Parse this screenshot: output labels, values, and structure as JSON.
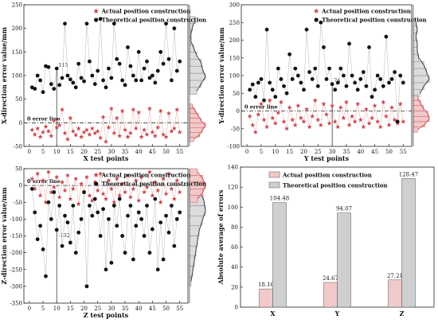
{
  "colors": {
    "actual": "#c8474d",
    "theoretical": "#111111",
    "actual_hist": "#f2c8c8",
    "theo_hist": "#dcdcdc",
    "bar_actual": "#f1c9c9",
    "bar_theoretical": "#cfcfcf"
  },
  "chart_data": [
    {
      "id": "x",
      "type": "scatter",
      "xlabel": "X test points",
      "ylabel": "X-direction error value/mm",
      "xlim": [
        -2,
        58
      ],
      "ylim": [
        -50,
        250
      ],
      "xticks": [
        0,
        5,
        10,
        15,
        20,
        25,
        30,
        35,
        40,
        45,
        50,
        55
      ],
      "yticks": [
        -50,
        0,
        50,
        100,
        150,
        200,
        250
      ],
      "zero_label": "0 error line",
      "marker_label": "115",
      "marker_x": 10,
      "marker_y": 115,
      "legend": {
        "actual": "Actual position construction",
        "theoretical": "Theoretical position construction"
      },
      "series": [
        {
          "name": "Actual position construction",
          "marker": "star",
          "x": [
            1,
            2,
            3,
            4,
            5,
            6,
            7,
            8,
            9,
            10,
            11,
            12,
            13,
            14,
            15,
            16,
            17,
            18,
            19,
            20,
            21,
            22,
            23,
            24,
            25,
            26,
            27,
            28,
            29,
            30,
            31,
            32,
            33,
            34,
            35,
            36,
            37,
            38,
            39,
            40,
            41,
            42,
            43,
            44,
            45,
            46,
            47,
            48,
            49,
            50,
            51,
            52,
            53,
            54,
            55
          ],
          "y": [
            -15,
            -25,
            -12,
            -30,
            -20,
            -8,
            -18,
            -28,
            5,
            -10,
            -5,
            28,
            -22,
            -35,
            10,
            -18,
            -26,
            -12,
            -30,
            -20,
            -15,
            -25,
            -12,
            -22,
            -18,
            -32,
            12,
            -40,
            -10,
            30,
            -22,
            10,
            -28,
            25,
            -15,
            -30,
            -22,
            28,
            -12,
            22,
            -30,
            -15,
            -25,
            30,
            -20,
            -28,
            -10,
            25,
            -25,
            -30,
            20,
            -18,
            -12,
            28,
            -20
          ]
        },
        {
          "name": "Theoretical position construction",
          "marker": "circle",
          "x": [
            1,
            2,
            3,
            4,
            5,
            6,
            7,
            8,
            9,
            10,
            11,
            12,
            13,
            14,
            15,
            16,
            17,
            18,
            19,
            20,
            21,
            22,
            23,
            24,
            25,
            26,
            27,
            28,
            29,
            30,
            31,
            32,
            33,
            34,
            35,
            36,
            37,
            38,
            39,
            40,
            41,
            42,
            43,
            44,
            45,
            46,
            47,
            48,
            49,
            50,
            51,
            52,
            53,
            54,
            55
          ],
          "y": [
            75,
            72,
            100,
            90,
            65,
            120,
            118,
            82,
            72,
            115,
            80,
            95,
            210,
            100,
            92,
            85,
            75,
            125,
            95,
            88,
            210,
            130,
            100,
            82,
            110,
            220,
            90,
            75,
            115,
            95,
            210,
            135,
            125,
            90,
            80,
            160,
            120,
            100,
            90,
            150,
            90,
            115,
            130,
            95,
            100,
            85,
            110,
            150,
            125,
            210,
            135,
            90,
            200,
            110,
            130
          ]
        }
      ],
      "hist": {
        "actual": {
          "bins": [
            -40,
            -30,
            -20,
            -10,
            0,
            10,
            20,
            30
          ],
          "counts": [
            3,
            7,
            9,
            11,
            8,
            6,
            4,
            2
          ]
        },
        "theoretical": {
          "bins": [
            60,
            75,
            90,
            105,
            120,
            135,
            150,
            165,
            180,
            195,
            210
          ],
          "counts": [
            5,
            8,
            11,
            9,
            8,
            5,
            3,
            1,
            1,
            2,
            4
          ]
        }
      }
    },
    {
      "id": "y",
      "type": "scatter",
      "xlabel": "Y test points",
      "ylabel": "Y-direction error value/mm",
      "xlim": [
        -2,
        58
      ],
      "ylim": [
        -100,
        300
      ],
      "xticks": [
        0,
        5,
        10,
        15,
        20,
        25,
        30,
        35,
        40,
        45,
        50,
        55
      ],
      "yticks": [
        -100,
        -50,
        0,
        50,
        100,
        150,
        200,
        250,
        300
      ],
      "zero_label": "0 error line",
      "marker_label": "76",
      "marker_x": 30,
      "marker_y": 76,
      "legend": {
        "actual": "Actual position construction",
        "theoretical": "Theoretical position construction"
      },
      "series": [
        {
          "name": "Actual position construction",
          "marker": "star",
          "x": [
            1,
            2,
            3,
            4,
            5,
            6,
            7,
            8,
            9,
            10,
            11,
            12,
            13,
            14,
            15,
            16,
            17,
            18,
            19,
            20,
            21,
            22,
            23,
            24,
            25,
            26,
            27,
            28,
            29,
            30,
            31,
            32,
            33,
            34,
            35,
            36,
            37,
            38,
            39,
            40,
            41,
            42,
            43,
            44,
            45,
            46,
            47,
            48,
            49,
            50,
            51,
            52,
            53,
            54,
            55
          ],
          "y": [
            -15,
            -40,
            -60,
            -10,
            20,
            -25,
            -45,
            30,
            -20,
            -35,
            -5,
            25,
            -30,
            -50,
            10,
            -25,
            -40,
            15,
            -20,
            -30,
            5,
            -45,
            -15,
            30,
            -25,
            -40,
            20,
            -10,
            -35,
            15,
            -30,
            -45,
            10,
            -20,
            25,
            -40,
            -15,
            -30,
            20,
            -25,
            -45,
            5,
            -35,
            -20,
            15,
            -30,
            -45,
            25,
            -15,
            -40,
            10,
            -25,
            -35,
            20,
            -30
          ]
        },
        {
          "name": "Theoretical position construction",
          "marker": "circle",
          "x": [
            1,
            2,
            3,
            4,
            5,
            6,
            7,
            8,
            9,
            10,
            11,
            12,
            13,
            14,
            15,
            16,
            17,
            18,
            19,
            20,
            21,
            22,
            23,
            24,
            25,
            26,
            27,
            28,
            29,
            30,
            31,
            32,
            33,
            34,
            35,
            36,
            37,
            38,
            39,
            40,
            41,
            42,
            43,
            44,
            45,
            46,
            47,
            48,
            49,
            50,
            51,
            52,
            53,
            54,
            55
          ],
          "y": [
            60,
            75,
            40,
            80,
            90,
            30,
            230,
            80,
            60,
            40,
            120,
            90,
            70,
            50,
            160,
            90,
            120,
            100,
            80,
            60,
            230,
            110,
            90,
            120,
            70,
            250,
            180,
            90,
            120,
            76,
            60,
            80,
            120,
            100,
            70,
            190,
            100,
            80,
            60,
            90,
            110,
            70,
            180,
            40,
            60,
            100,
            90,
            70,
            210,
            80,
            90,
            110,
            -30,
            100,
            80
          ]
        }
      ],
      "hist": {
        "actual": {
          "bins": [
            -60,
            -45,
            -30,
            -15,
            0,
            15,
            30
          ],
          "counts": [
            3,
            8,
            11,
            10,
            7,
            5,
            3
          ]
        },
        "theoretical": {
          "bins": [
            40,
            60,
            80,
            100,
            120,
            140,
            160,
            180,
            200,
            220,
            240
          ],
          "counts": [
            5,
            8,
            12,
            10,
            8,
            4,
            3,
            3,
            2,
            3,
            2
          ]
        }
      }
    },
    {
      "id": "z",
      "type": "scatter",
      "xlabel": "Z test points",
      "ylabel": "Z-direction error value/mm",
      "xlim": [
        -2,
        58
      ],
      "ylim": [
        -350,
        50
      ],
      "xticks": [
        0,
        5,
        10,
        15,
        20,
        25,
        30,
        35,
        40,
        45,
        50,
        55
      ],
      "yticks": [
        -350,
        -300,
        -250,
        -200,
        -150,
        -100,
        -50,
        0,
        50
      ],
      "zero_label": "0 error line",
      "marker_label": "-132",
      "marker_x": 10,
      "marker_y": -132,
      "legend": {
        "actual": "Actual position construction",
        "theoretical": "Theoretical position construction"
      },
      "series": [
        {
          "name": "Actual position construction",
          "marker": "star",
          "x": [
            1,
            2,
            3,
            4,
            5,
            6,
            7,
            8,
            9,
            10,
            11,
            12,
            13,
            14,
            15,
            16,
            17,
            18,
            19,
            20,
            21,
            22,
            23,
            24,
            25,
            26,
            27,
            28,
            29,
            30,
            31,
            32,
            33,
            34,
            35,
            36,
            37,
            38,
            39,
            40,
            41,
            42,
            43,
            44,
            45,
            46,
            47,
            48,
            49,
            50,
            51,
            52,
            53,
            54,
            55
          ],
          "y": [
            20,
            -10,
            35,
            -30,
            15,
            -50,
            40,
            -20,
            -5,
            25,
            -35,
            10,
            -15,
            30,
            -40,
            -10,
            20,
            -55,
            5,
            -20,
            25,
            -30,
            -45,
            10,
            -15,
            35,
            -25,
            -40,
            15,
            -10,
            -50,
            20,
            -30,
            5,
            -20,
            30,
            -35,
            -10,
            15,
            -45,
            25,
            -20,
            -5,
            40,
            -30,
            10,
            -15,
            -50,
            20,
            -25,
            35,
            -10,
            -40,
            15,
            -20
          ]
        },
        {
          "name": "Theoretical position construction",
          "marker": "circle",
          "x": [
            1,
            2,
            3,
            4,
            5,
            6,
            7,
            8,
            9,
            10,
            11,
            12,
            13,
            14,
            15,
            16,
            17,
            18,
            19,
            20,
            21,
            22,
            23,
            24,
            25,
            26,
            27,
            28,
            29,
            30,
            31,
            32,
            33,
            34,
            35,
            36,
            37,
            38,
            39,
            40,
            41,
            42,
            43,
            44,
            45,
            46,
            47,
            48,
            49,
            50,
            51,
            52,
            53,
            54,
            55
          ],
          "y": [
            -10,
            -80,
            -160,
            -120,
            -190,
            -270,
            -50,
            -100,
            -20,
            -132,
            -60,
            -180,
            -90,
            -110,
            -170,
            -60,
            -200,
            -140,
            -100,
            -20,
            -300,
            -60,
            -90,
            -40,
            -80,
            -150,
            -70,
            -250,
            -100,
            -230,
            -60,
            -120,
            -40,
            -150,
            -200,
            -90,
            -60,
            -220,
            -120,
            -80,
            -100,
            -150,
            -60,
            -200,
            -130,
            -40,
            -250,
            -110,
            -220,
            -90,
            -140,
            -60,
            -180,
            -100,
            -80
          ]
        }
      ],
      "hist": {
        "actual": {
          "bins": [
            -50,
            -30,
            -10,
            10,
            30
          ],
          "counts": [
            6,
            10,
            12,
            10,
            6
          ]
        },
        "theoretical": {
          "bins": [
            -300,
            -270,
            -240,
            -210,
            -180,
            -150,
            -120,
            -90,
            -60,
            -30,
            0
          ],
          "counts": [
            1,
            2,
            3,
            4,
            5,
            6,
            8,
            10,
            9,
            6,
            3
          ]
        }
      }
    },
    {
      "id": "bars",
      "type": "bar",
      "ylabel": "Absolute average of errors",
      "categories": [
        "X",
        "Y",
        "Z"
      ],
      "ylim": [
        0,
        140
      ],
      "yticks": [
        0,
        20,
        40,
        60,
        80,
        100,
        120,
        140
      ],
      "series": [
        {
          "name": "Actual position construction",
          "values": [
            18.16,
            24.67,
            27.21
          ],
          "labels": [
            "18.16",
            "24.67",
            "27.21"
          ]
        },
        {
          "name": "Theoretical position construction",
          "values": [
            104.48,
            94.07,
            128.47
          ],
          "labels": [
            "104.48",
            "94.07",
            "128.47"
          ]
        }
      ]
    }
  ]
}
